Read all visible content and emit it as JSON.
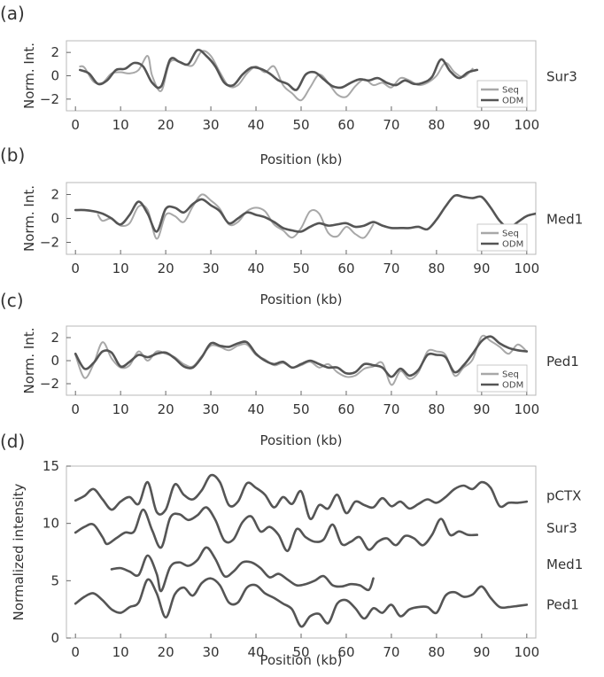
{
  "chart_data": [
    {
      "type": "line",
      "panel_label": "(a)",
      "side_label": "Sur3",
      "xlabel": "Position (kb)",
      "ylabel": "Norm. Int.",
      "xlim": [
        -2,
        102
      ],
      "ylim": [
        -3,
        3
      ],
      "xticks": [
        0,
        10,
        20,
        30,
        40,
        50,
        60,
        70,
        80,
        90,
        100
      ],
      "yticks": [
        2,
        0,
        -2
      ],
      "legend": {
        "position": "lower-right",
        "entries": [
          "Seq",
          "ODM"
        ]
      },
      "series": [
        {
          "name": "Seq",
          "color": "#a8a8a8",
          "x": [
            1,
            2,
            4,
            6,
            8,
            10,
            12,
            14,
            16,
            17,
            19,
            21,
            24,
            26,
            28,
            30,
            32,
            34,
            36,
            38,
            40,
            42,
            44,
            46,
            48,
            50,
            52,
            54,
            56,
            58,
            60,
            62,
            64,
            66,
            68,
            70,
            72,
            74,
            76,
            78,
            80,
            82,
            84,
            86,
            88
          ],
          "y": [
            0.8,
            0.7,
            -0.5,
            -0.6,
            0.2,
            0.3,
            0.2,
            0.5,
            1.7,
            0.0,
            -1.3,
            1.2,
            1.0,
            0.9,
            2.1,
            1.7,
            0.3,
            -0.9,
            -0.8,
            0.2,
            0.8,
            0.3,
            0.8,
            -0.8,
            -1.5,
            -2.1,
            -1.0,
            0.1,
            -0.6,
            -1.6,
            -1.8,
            -0.9,
            -0.3,
            -0.8,
            -0.6,
            -1.0,
            -0.2,
            -0.4,
            -0.8,
            -0.6,
            0.0,
            1.1,
            0.3,
            -0.1,
            0.6
          ]
        },
        {
          "name": "ODM",
          "color": "#555555",
          "x": [
            1,
            3,
            5,
            7,
            9,
            11,
            13,
            15,
            17,
            19,
            21,
            23,
            25,
            27,
            29,
            31,
            33,
            35,
            37,
            39,
            41,
            43,
            45,
            47,
            49,
            51,
            53,
            55,
            57,
            59,
            61,
            63,
            65,
            67,
            69,
            71,
            73,
            75,
            77,
            79,
            81,
            83,
            85,
            87,
            89
          ],
          "y": [
            0.5,
            0.2,
            -0.7,
            -0.4,
            0.5,
            0.6,
            1.1,
            0.8,
            -0.6,
            -0.9,
            1.4,
            1.2,
            1.0,
            2.2,
            1.7,
            0.8,
            -0.6,
            -0.8,
            0.1,
            0.7,
            0.6,
            0.2,
            -0.4,
            -0.7,
            -1.2,
            0.1,
            0.3,
            -0.3,
            -0.9,
            -1.0,
            -0.6,
            -0.3,
            -0.4,
            -0.2,
            -0.6,
            -0.8,
            -0.4,
            -0.7,
            -0.6,
            -0.1,
            1.4,
            0.4,
            -0.2,
            0.3,
            0.5
          ]
        }
      ]
    },
    {
      "type": "line",
      "panel_label": "(b)",
      "side_label": "Med1",
      "xlabel": "Position (kb)",
      "ylabel": "Norm. Int.",
      "xlim": [
        -2,
        102
      ],
      "ylim": [
        -3,
        3
      ],
      "xticks": [
        0,
        10,
        20,
        30,
        40,
        50,
        60,
        70,
        80,
        90,
        100
      ],
      "yticks": [
        2,
        0,
        -2
      ],
      "legend": {
        "position": "lower-right",
        "entries": [
          "Seq",
          "ODM"
        ]
      },
      "series": [
        {
          "name": "Seq",
          "color": "#a8a8a8",
          "x": [
            5,
            6,
            8,
            10,
            12,
            14,
            16,
            18,
            20,
            22,
            24,
            26,
            28,
            30,
            32,
            34,
            36,
            38,
            40,
            42,
            44,
            46,
            48,
            50,
            52,
            54,
            56,
            58,
            60,
            62,
            64,
            66
          ],
          "y": [
            0.3,
            -0.2,
            0.0,
            -0.6,
            -0.4,
            1.0,
            0.7,
            -1.7,
            0.3,
            0.2,
            -0.3,
            1.0,
            2.0,
            1.5,
            0.8,
            -0.5,
            -0.3,
            0.6,
            0.9,
            0.6,
            -0.5,
            -1.0,
            -1.6,
            -0.8,
            0.6,
            0.4,
            -1.2,
            -1.5,
            -0.7,
            -1.3,
            -1.6,
            -0.5
          ]
        },
        {
          "name": "ODM",
          "color": "#555555",
          "x": [
            0,
            2,
            4,
            6,
            8,
            10,
            12,
            14,
            16,
            18,
            20,
            22,
            24,
            26,
            28,
            30,
            32,
            34,
            36,
            38,
            40,
            42,
            44,
            46,
            48,
            50,
            52,
            54,
            56,
            58,
            60,
            62,
            64,
            66,
            68,
            70,
            72,
            74,
            76,
            78,
            80,
            82,
            84,
            86,
            88,
            90,
            92,
            94,
            96,
            98,
            100,
            102
          ],
          "y": [
            0.7,
            0.7,
            0.6,
            0.4,
            0.0,
            -0.5,
            0.3,
            1.4,
            0.4,
            -1.1,
            0.8,
            0.9,
            0.5,
            1.2,
            1.6,
            1.1,
            0.6,
            -0.4,
            0.0,
            0.5,
            0.3,
            0.1,
            -0.3,
            -0.8,
            -1.0,
            -1.1,
            -0.7,
            -0.4,
            -0.6,
            -0.5,
            -0.4,
            -0.7,
            -0.6,
            -0.3,
            -0.6,
            -0.8,
            -0.8,
            -0.8,
            -0.7,
            -0.9,
            -0.1,
            1.0,
            1.9,
            1.8,
            1.7,
            1.8,
            0.9,
            -0.2,
            -0.8,
            -0.3,
            0.2,
            0.4
          ]
        }
      ]
    },
    {
      "type": "line",
      "panel_label": "(c)",
      "side_label": "Ped1",
      "xlabel": "Position (kb)",
      "ylabel": "Norm. Int.",
      "xlim": [
        -2,
        102
      ],
      "ylim": [
        -3,
        3
      ],
      "xticks": [
        0,
        10,
        20,
        30,
        40,
        50,
        60,
        70,
        80,
        90,
        100
      ],
      "yticks": [
        2,
        0,
        -2
      ],
      "legend": {
        "position": "lower-right",
        "entries": [
          "Seq",
          "ODM"
        ]
      },
      "series": [
        {
          "name": "Seq",
          "color": "#a8a8a8",
          "x": [
            0,
            2,
            4,
            6,
            8,
            10,
            12,
            14,
            16,
            18,
            20,
            22,
            24,
            26,
            28,
            30,
            32,
            34,
            36,
            38,
            40,
            42,
            44,
            46,
            48,
            50,
            52,
            54,
            56,
            58,
            60,
            62,
            64,
            66,
            68,
            70,
            72,
            74,
            76,
            78,
            80,
            82,
            84,
            86,
            88,
            90,
            92,
            94,
            96,
            98,
            100
          ],
          "y": [
            0.5,
            -1.5,
            -0.3,
            1.6,
            0.2,
            -0.6,
            -0.4,
            0.8,
            0.0,
            0.8,
            0.6,
            0.3,
            -0.3,
            -0.5,
            0.4,
            1.3,
            1.2,
            0.9,
            1.3,
            1.4,
            0.5,
            0.1,
            -0.4,
            -0.2,
            -0.6,
            -0.4,
            -0.1,
            -0.6,
            -0.3,
            -1.0,
            -1.4,
            -1.3,
            -0.7,
            -0.5,
            -0.2,
            -2.1,
            -0.9,
            -1.6,
            -1.0,
            0.8,
            0.8,
            0.5,
            -1.3,
            -0.6,
            0.1,
            2.1,
            1.7,
            1.2,
            0.6,
            1.4,
            0.8
          ]
        },
        {
          "name": "ODM",
          "color": "#555555",
          "x": [
            0,
            2,
            4,
            6,
            8,
            10,
            12,
            14,
            16,
            18,
            20,
            22,
            24,
            26,
            28,
            30,
            32,
            34,
            36,
            38,
            40,
            42,
            44,
            46,
            48,
            50,
            52,
            54,
            56,
            58,
            60,
            62,
            64,
            66,
            68,
            70,
            72,
            74,
            76,
            78,
            80,
            82,
            84,
            86,
            88,
            90,
            92,
            94,
            96,
            98,
            100
          ],
          "y": [
            0.6,
            -0.7,
            -0.2,
            0.8,
            0.7,
            -0.5,
            -0.1,
            0.5,
            0.3,
            0.6,
            0.7,
            0.2,
            -0.5,
            -0.6,
            0.3,
            1.5,
            1.3,
            1.2,
            1.5,
            1.6,
            0.6,
            0.0,
            -0.3,
            -0.1,
            -0.6,
            -0.3,
            0.0,
            -0.3,
            -0.6,
            -0.6,
            -1.1,
            -1.0,
            -0.3,
            -0.4,
            -0.6,
            -1.4,
            -0.7,
            -1.3,
            -0.8,
            0.5,
            0.5,
            0.3,
            -1.0,
            -0.4,
            0.6,
            1.7,
            2.1,
            1.5,
            1.1,
            0.9,
            0.8
          ]
        }
      ]
    },
    {
      "type": "line",
      "panel_label": "(d)",
      "xlabel": "Position (kb)",
      "ylabel": "Normalized intensity",
      "xlim": [
        -2,
        102
      ],
      "ylim": [
        0,
        15
      ],
      "xticks": [
        0,
        10,
        20,
        30,
        40,
        50,
        60,
        70,
        80,
        90,
        100
      ],
      "yticks": [
        15,
        10,
        5,
        0
      ],
      "series": [
        {
          "name": "pCTX",
          "color": "#555555",
          "x": [
            0,
            2,
            4,
            6,
            8,
            10,
            12,
            14,
            16,
            18,
            20,
            22,
            24,
            26,
            28,
            30,
            32,
            34,
            36,
            38,
            40,
            42,
            44,
            46,
            48,
            50,
            52,
            54,
            56,
            58,
            60,
            62,
            64,
            66,
            68,
            70,
            72,
            74,
            76,
            78,
            80,
            82,
            84,
            86,
            88,
            90,
            92,
            94,
            96,
            98,
            100
          ],
          "y": [
            12.0,
            12.4,
            13.0,
            12.1,
            11.2,
            11.9,
            12.3,
            11.7,
            13.6,
            11.0,
            11.2,
            13.4,
            12.5,
            12.1,
            12.9,
            14.2,
            13.6,
            11.6,
            11.9,
            13.5,
            13.1,
            12.5,
            11.4,
            12.3,
            11.7,
            12.8,
            10.4,
            11.6,
            11.3,
            12.5,
            10.9,
            11.9,
            11.6,
            11.4,
            12.2,
            11.5,
            11.9,
            11.3,
            11.7,
            12.1,
            11.8,
            12.3,
            13.0,
            13.3,
            13.0,
            13.6,
            13.1,
            11.5,
            11.8,
            11.8,
            11.9
          ]
        },
        {
          "name": "Sur3",
          "color": "#555555",
          "x": [
            0,
            2,
            4,
            6,
            7,
            9,
            11,
            13,
            15,
            17,
            19,
            21,
            23,
            25,
            27,
            29,
            31,
            33,
            35,
            37,
            39,
            41,
            43,
            45,
            47,
            49,
            51,
            53,
            55,
            57,
            59,
            61,
            63,
            65,
            67,
            69,
            71,
            73,
            75,
            77,
            79,
            81,
            83,
            85,
            87,
            89
          ],
          "y": [
            9.2,
            9.7,
            9.9,
            8.8,
            8.2,
            8.7,
            9.2,
            9.3,
            11.2,
            9.4,
            7.9,
            10.5,
            10.8,
            10.3,
            10.7,
            11.4,
            10.3,
            8.5,
            8.6,
            10.1,
            10.6,
            9.3,
            9.7,
            9.0,
            7.6,
            9.5,
            8.8,
            8.4,
            8.6,
            9.9,
            8.2,
            8.4,
            8.8,
            7.7,
            8.4,
            8.7,
            8.1,
            8.9,
            8.7,
            8.1,
            9.0,
            10.4,
            9.0,
            9.3,
            9.0,
            9.0
          ]
        },
        {
          "name": "Med1",
          "color": "#555555",
          "x": [
            8,
            10,
            12,
            14,
            16,
            18,
            19,
            21,
            23,
            25,
            27,
            29,
            31,
            33,
            35,
            37,
            39,
            41,
            43,
            45,
            47,
            49,
            51,
            53,
            55,
            57,
            59,
            61,
            63,
            65,
            66
          ],
          "y": [
            6.0,
            6.1,
            5.8,
            5.5,
            7.2,
            5.6,
            4.1,
            6.2,
            6.6,
            6.3,
            6.8,
            7.9,
            6.9,
            5.4,
            5.8,
            6.6,
            6.6,
            6.1,
            5.3,
            5.6,
            5.1,
            4.6,
            4.7,
            5.0,
            5.4,
            4.6,
            4.5,
            4.7,
            4.6,
            4.2,
            5.2
          ]
        },
        {
          "name": "Ped1",
          "color": "#555555",
          "x": [
            0,
            2,
            4,
            6,
            8,
            10,
            12,
            14,
            16,
            18,
            20,
            22,
            24,
            26,
            28,
            30,
            32,
            34,
            36,
            38,
            40,
            42,
            44,
            46,
            48,
            50,
            52,
            54,
            56,
            58,
            60,
            62,
            64,
            66,
            68,
            70,
            72,
            74,
            76,
            78,
            80,
            82,
            84,
            86,
            88,
            90,
            92,
            94,
            96,
            98,
            100
          ],
          "y": [
            3.0,
            3.6,
            3.9,
            3.3,
            2.5,
            2.2,
            2.7,
            3.1,
            5.1,
            3.9,
            1.8,
            3.8,
            4.4,
            3.7,
            4.8,
            5.2,
            4.6,
            3.1,
            3.1,
            4.4,
            4.6,
            3.9,
            3.5,
            3.0,
            2.5,
            1.0,
            1.9,
            2.1,
            1.3,
            3.0,
            3.3,
            2.6,
            1.7,
            2.6,
            2.2,
            2.9,
            1.9,
            2.5,
            2.7,
            2.7,
            2.2,
            3.7,
            4.0,
            3.6,
            3.8,
            4.5,
            3.5,
            2.7,
            2.7,
            2.8,
            2.9
          ]
        }
      ]
    }
  ]
}
